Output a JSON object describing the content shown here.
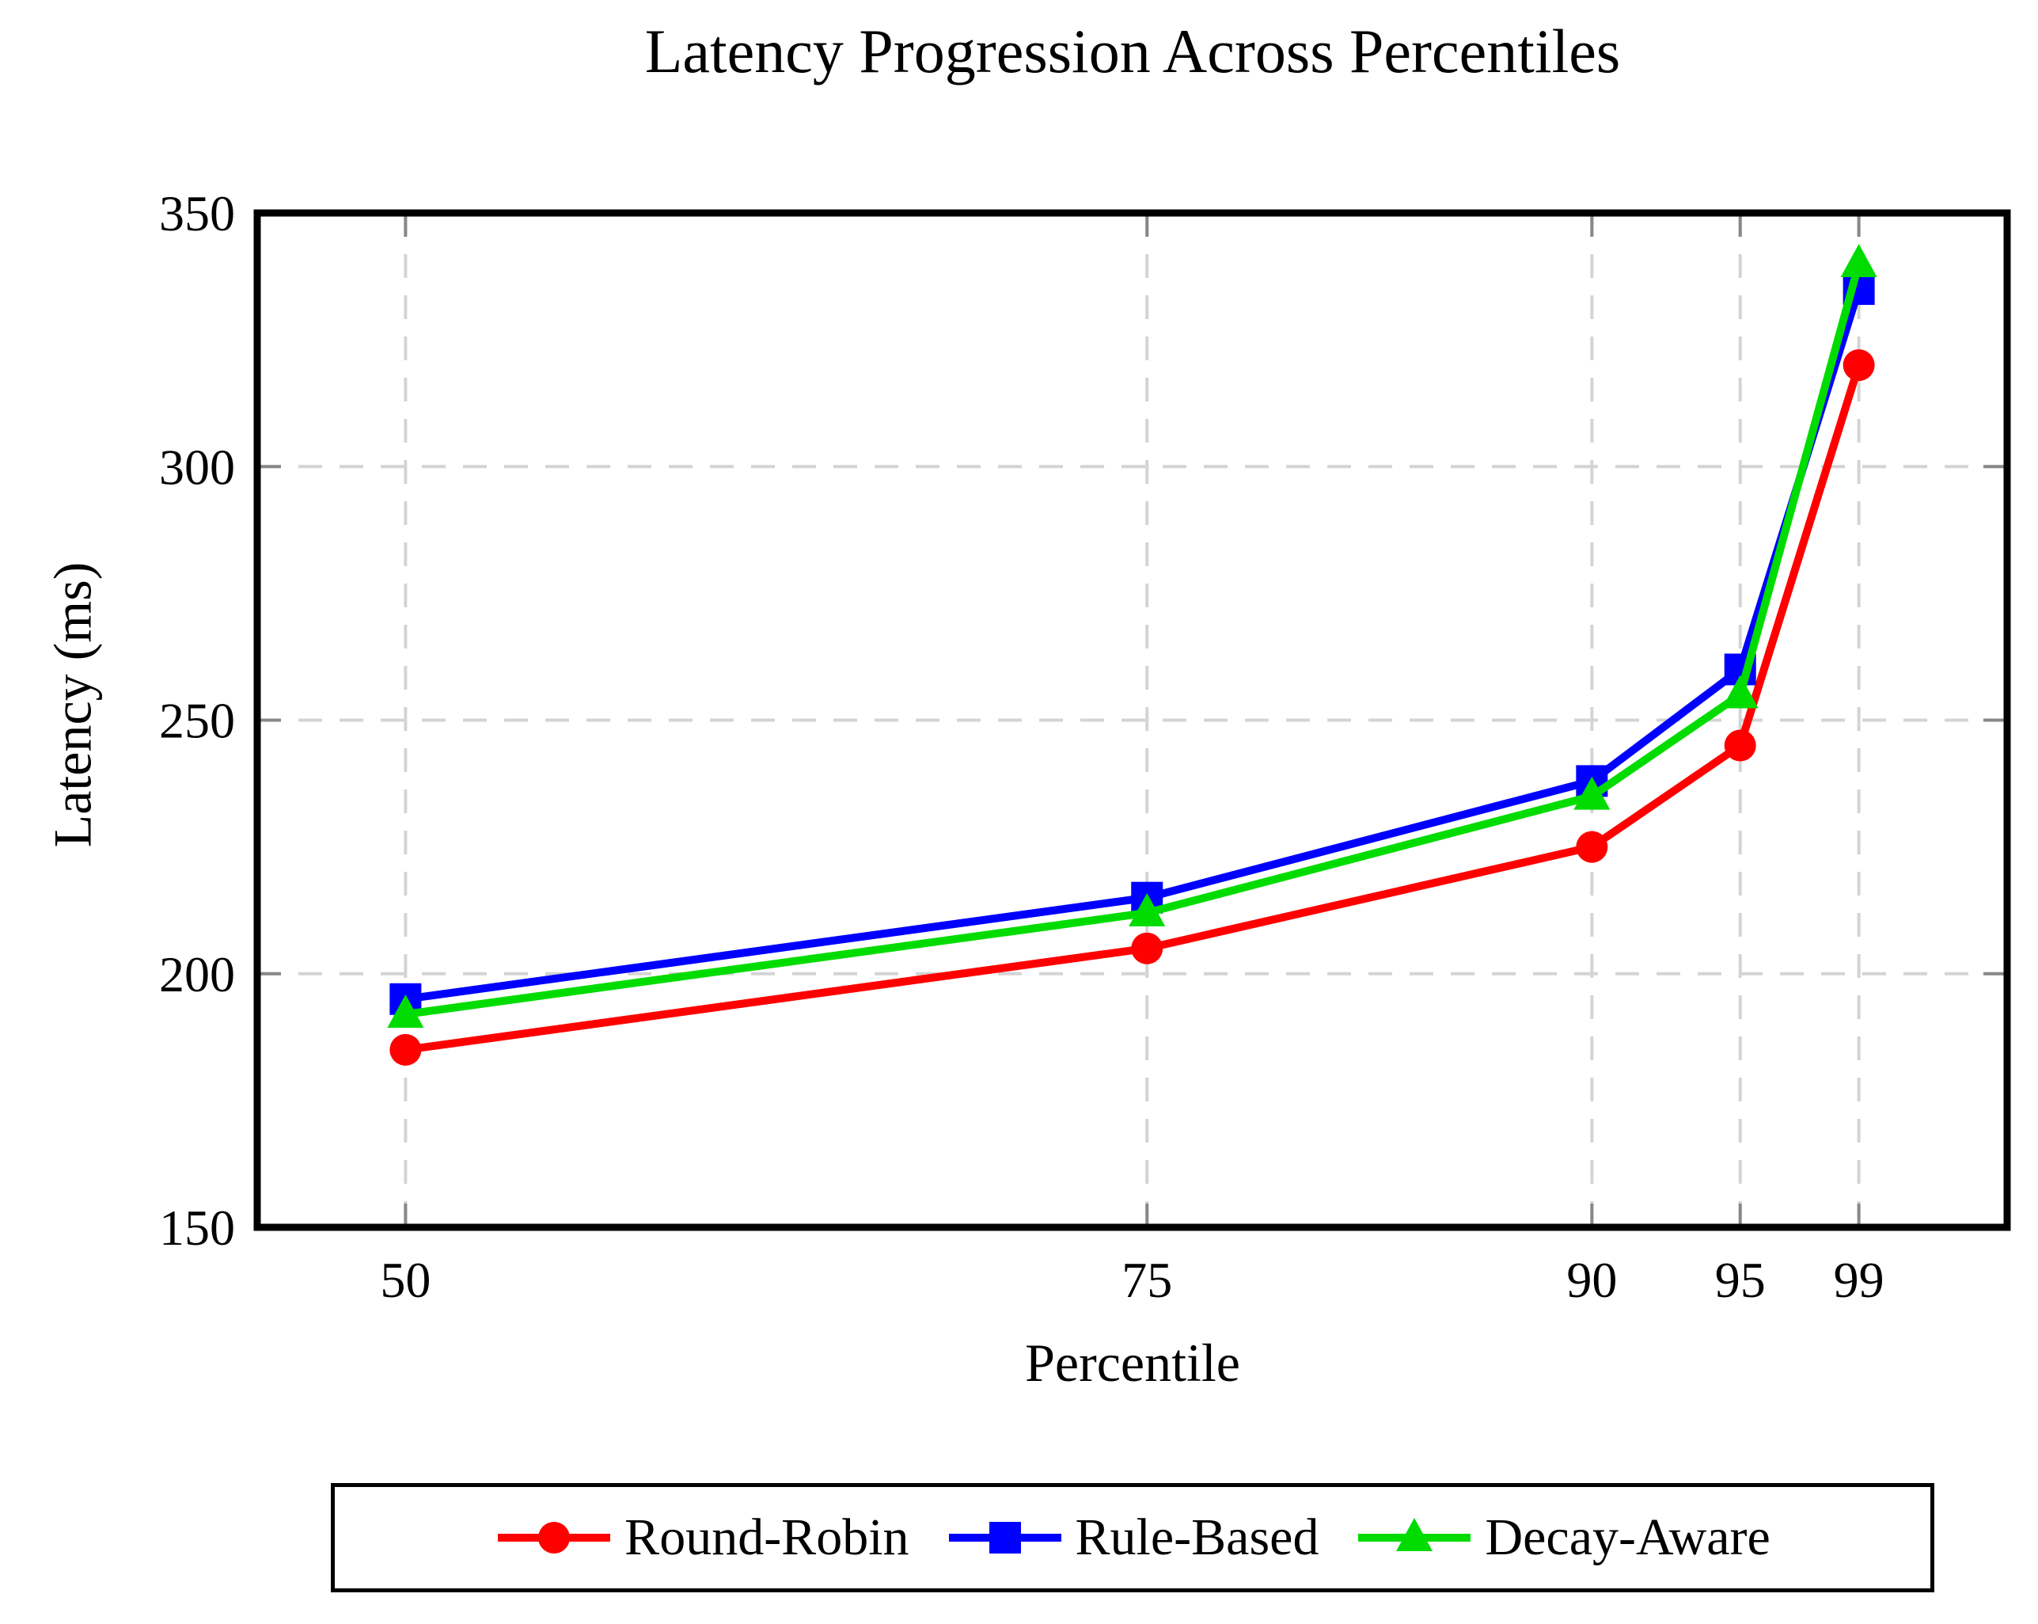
{
  "figure": {
    "background": "#FFFFFF"
  },
  "chart_data": {
    "type": "line",
    "title": "Latency Progression Across Percentiles",
    "xlabel": "Percentile",
    "ylabel": "Latency (ms)",
    "x": [
      50,
      75,
      90,
      95,
      99
    ],
    "xticks": [
      50,
      75,
      90,
      95,
      99
    ],
    "yticks": [
      150,
      200,
      250,
      300,
      350
    ],
    "xlim": [
      45,
      104
    ],
    "ylim": [
      150,
      350
    ],
    "grid": "dashed-both",
    "legend_position": "below-center-boxed",
    "series": [
      {
        "name": "Round-Robin",
        "marker": "circle",
        "color": "#FF0000",
        "values": [
          185,
          205,
          225,
          245,
          320
        ]
      },
      {
        "name": "Rule-Based",
        "marker": "square",
        "color": "#0000FF",
        "values": [
          195,
          215,
          238,
          260,
          335
        ]
      },
      {
        "name": "Decay-Aware",
        "marker": "triangle",
        "color": "#00DC00",
        "values": [
          192,
          212,
          235,
          255,
          340
        ]
      }
    ],
    "colors": {
      "grid": "#D4D4D4",
      "tick": "#888888",
      "axis": "#000000",
      "text": "#000000"
    }
  }
}
